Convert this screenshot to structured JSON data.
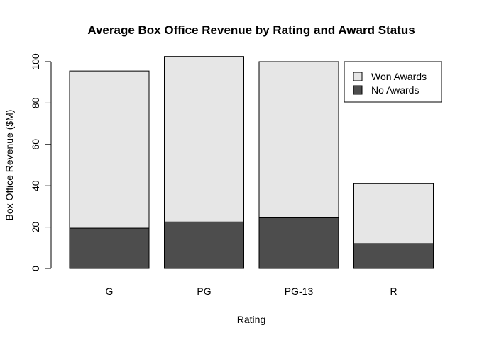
{
  "chart_data": {
    "type": "bar",
    "stacked": true,
    "title": "Average Box Office Revenue by Rating and Award Status",
    "xlabel": "Rating",
    "ylabel": "Box Office Revenue ($M)",
    "categories": [
      "G",
      "PG",
      "PG-13",
      "R"
    ],
    "series": [
      {
        "name": "No Awards",
        "values": [
          19.5,
          22.5,
          24.5,
          12
        ],
        "color": "#4d4d4d"
      },
      {
        "name": "Won Awards",
        "values": [
          76,
          80,
          75.5,
          29
        ],
        "color": "#e6e6e6"
      }
    ],
    "ylim": [
      0,
      100
    ],
    "yticks": [
      0,
      20,
      40,
      60,
      80,
      100
    ],
    "grid": false,
    "legend": {
      "placement": "top-right",
      "items": [
        {
          "label": "Won Awards",
          "color": "#e6e6e6"
        },
        {
          "label": "No Awards",
          "color": "#4d4d4d"
        }
      ]
    }
  }
}
